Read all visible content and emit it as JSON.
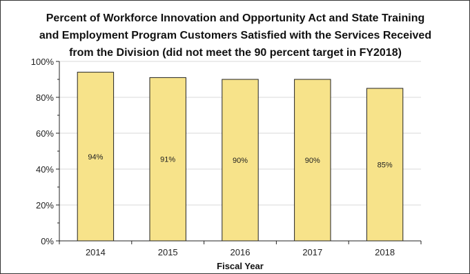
{
  "chart_data": {
    "type": "bar",
    "title_lines": [
      "Percent of Workforce Innovation and Opportunity Act and State Training",
      "and Employment Program Customers Satisfied with the Services Received",
      "from the Division (did not meet the 90 percent target in FY2018)"
    ],
    "categories": [
      "2014",
      "2015",
      "2016",
      "2017",
      "2018"
    ],
    "values": [
      94,
      91,
      90,
      90,
      85
    ],
    "data_labels": [
      "94%",
      "91%",
      "90%",
      "90%",
      "85%"
    ],
    "xlabel": "Fiscal Year",
    "ylabel": "",
    "ylim": [
      0,
      100
    ],
    "yticks": [
      0,
      20,
      40,
      60,
      80,
      100
    ],
    "ytick_labels": [
      "0%",
      "20%",
      "40%",
      "60%",
      "80%",
      "100%"
    ],
    "grid": true,
    "bar_color": "#f7e38a",
    "bar_edge_color": "#222222",
    "grid_color": "#d9d9d9"
  }
}
